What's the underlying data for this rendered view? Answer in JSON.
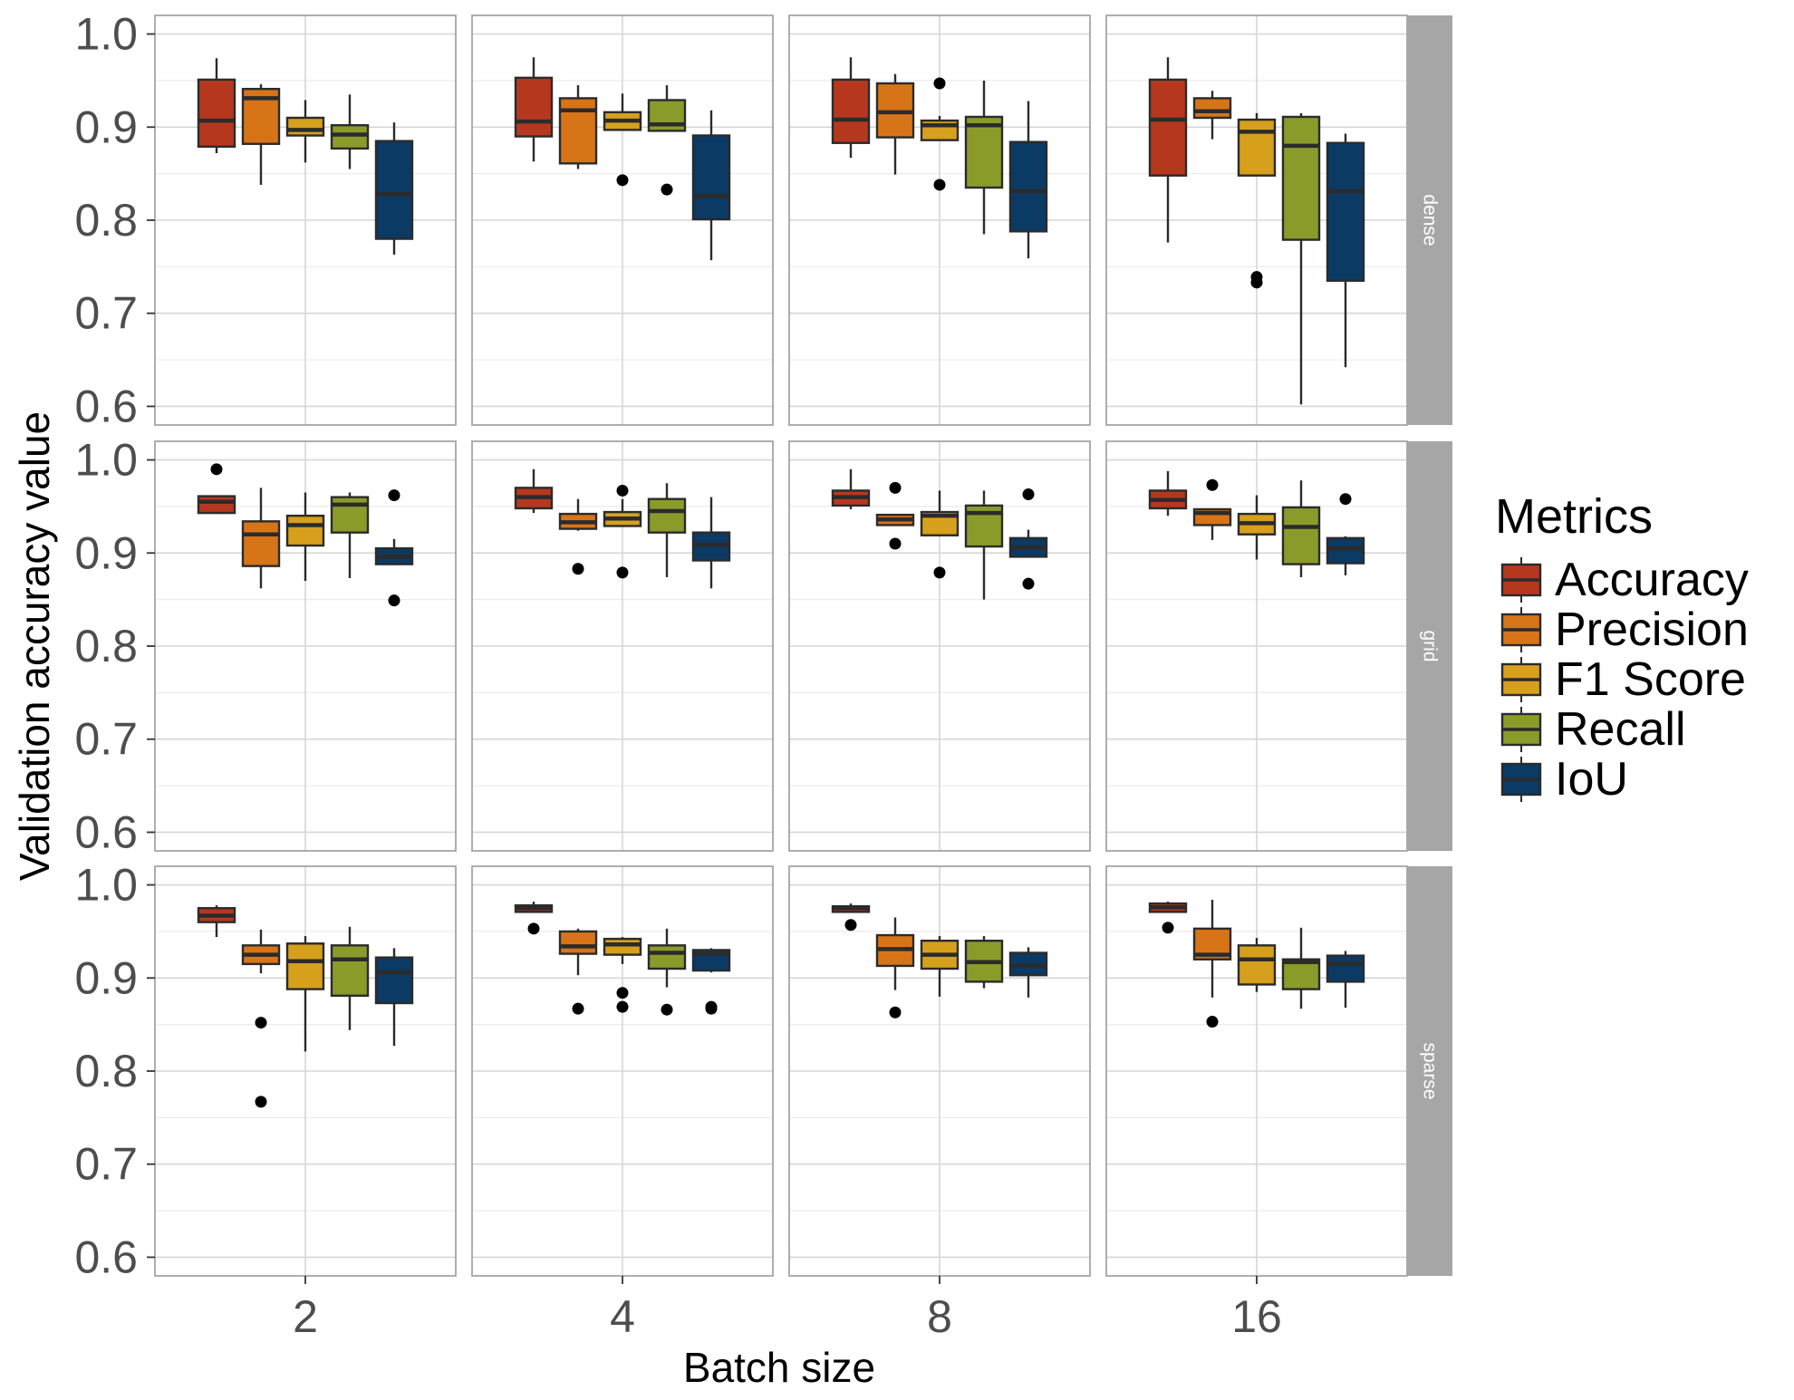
{
  "chart_data": {
    "type": "box",
    "ylabel": "Validation accuracy value",
    "xlabel": "Batch size",
    "batch_sizes": [
      "2",
      "4",
      "8",
      "16"
    ],
    "row_facets": [
      "dense",
      "grid",
      "sparse"
    ],
    "ylim": [
      0.58,
      1.02
    ],
    "y_ticks": [
      "0.6",
      "0.7",
      "0.8",
      "0.9",
      "1.0"
    ],
    "y_tick_values": [
      0.6,
      0.7,
      0.8,
      0.9,
      1.0
    ],
    "grid": true,
    "legend": {
      "title": "Metrics",
      "placement": "right",
      "items": [
        {
          "name": "Accuracy",
          "color": "#b5381e"
        },
        {
          "name": "Precision",
          "color": "#d87418"
        },
        {
          "name": "F1 Score",
          "color": "#d6a01c"
        },
        {
          "name": "Recall",
          "color": "#8b9b2a"
        },
        {
          "name": "IoU",
          "color": "#0b3a64"
        }
      ]
    },
    "panels": [
      {
        "row": "dense",
        "batch": "2",
        "boxes": [
          {
            "metric": "Accuracy",
            "min": 0.872,
            "q1": 0.879,
            "median": 0.907,
            "q3": 0.951,
            "max": 0.974,
            "outliers": []
          },
          {
            "metric": "Precision",
            "min": 0.838,
            "q1": 0.882,
            "median": 0.931,
            "q3": 0.941,
            "max": 0.946,
            "outliers": []
          },
          {
            "metric": "F1 Score",
            "min": 0.862,
            "q1": 0.891,
            "median": 0.897,
            "q3": 0.91,
            "max": 0.929,
            "outliers": []
          },
          {
            "metric": "Recall",
            "min": 0.855,
            "q1": 0.877,
            "median": 0.892,
            "q3": 0.902,
            "max": 0.935,
            "outliers": []
          },
          {
            "metric": "IoU",
            "min": 0.763,
            "q1": 0.78,
            "median": 0.828,
            "q3": 0.885,
            "max": 0.905,
            "outliers": []
          }
        ]
      },
      {
        "row": "dense",
        "batch": "4",
        "boxes": [
          {
            "metric": "Accuracy",
            "min": 0.863,
            "q1": 0.89,
            "median": 0.906,
            "q3": 0.953,
            "max": 0.975,
            "outliers": []
          },
          {
            "metric": "Precision",
            "min": 0.855,
            "q1": 0.861,
            "median": 0.918,
            "q3": 0.931,
            "max": 0.945,
            "outliers": []
          },
          {
            "metric": "F1 Score",
            "min": 0.897,
            "q1": 0.897,
            "median": 0.907,
            "q3": 0.916,
            "max": 0.936,
            "outliers": [
              0.843
            ]
          },
          {
            "metric": "Recall",
            "min": 0.895,
            "q1": 0.896,
            "median": 0.903,
            "q3": 0.929,
            "max": 0.945,
            "outliers": [
              0.833
            ]
          },
          {
            "metric": "IoU",
            "min": 0.757,
            "q1": 0.801,
            "median": 0.826,
            "q3": 0.891,
            "max": 0.918,
            "outliers": []
          }
        ]
      },
      {
        "row": "dense",
        "batch": "8",
        "boxes": [
          {
            "metric": "Accuracy",
            "min": 0.867,
            "q1": 0.883,
            "median": 0.908,
            "q3": 0.951,
            "max": 0.975,
            "outliers": []
          },
          {
            "metric": "Precision",
            "min": 0.849,
            "q1": 0.889,
            "median": 0.916,
            "q3": 0.947,
            "max": 0.957,
            "outliers": []
          },
          {
            "metric": "F1 Score",
            "min": 0.885,
            "q1": 0.886,
            "median": 0.902,
            "q3": 0.907,
            "max": 0.912,
            "outliers": [
              0.947,
              0.838
            ]
          },
          {
            "metric": "Recall",
            "min": 0.785,
            "q1": 0.835,
            "median": 0.902,
            "q3": 0.911,
            "max": 0.95,
            "outliers": []
          },
          {
            "metric": "IoU",
            "min": 0.759,
            "q1": 0.788,
            "median": 0.831,
            "q3": 0.884,
            "max": 0.928,
            "outliers": []
          }
        ]
      },
      {
        "row": "dense",
        "batch": "16",
        "boxes": [
          {
            "metric": "Accuracy",
            "min": 0.776,
            "q1": 0.848,
            "median": 0.908,
            "q3": 0.951,
            "max": 0.975,
            "outliers": []
          },
          {
            "metric": "Precision",
            "min": 0.887,
            "q1": 0.91,
            "median": 0.917,
            "q3": 0.931,
            "max": 0.939,
            "outliers": []
          },
          {
            "metric": "F1 Score",
            "min": 0.848,
            "q1": 0.848,
            "median": 0.895,
            "q3": 0.908,
            "max": 0.915,
            "outliers": [
              0.739,
              0.733
            ]
          },
          {
            "metric": "Recall",
            "min": 0.602,
            "q1": 0.779,
            "median": 0.88,
            "q3": 0.911,
            "max": 0.915,
            "outliers": []
          },
          {
            "metric": "IoU",
            "min": 0.642,
            "q1": 0.735,
            "median": 0.831,
            "q3": 0.883,
            "max": 0.893,
            "outliers": []
          }
        ]
      },
      {
        "row": "grid",
        "batch": "2",
        "boxes": [
          {
            "metric": "Accuracy",
            "min": 0.942,
            "q1": 0.943,
            "median": 0.955,
            "q3": 0.961,
            "max": 0.962,
            "outliers": [
              0.99
            ]
          },
          {
            "metric": "Precision",
            "min": 0.862,
            "q1": 0.886,
            "median": 0.92,
            "q3": 0.934,
            "max": 0.97,
            "outliers": []
          },
          {
            "metric": "F1 Score",
            "min": 0.87,
            "q1": 0.908,
            "median": 0.93,
            "q3": 0.94,
            "max": 0.965,
            "outliers": []
          },
          {
            "metric": "Recall",
            "min": 0.873,
            "q1": 0.922,
            "median": 0.952,
            "q3": 0.96,
            "max": 0.965,
            "outliers": []
          },
          {
            "metric": "IoU",
            "min": 0.887,
            "q1": 0.888,
            "median": 0.896,
            "q3": 0.905,
            "max": 0.915,
            "outliers": [
              0.962,
              0.849
            ]
          }
        ]
      },
      {
        "row": "grid",
        "batch": "4",
        "boxes": [
          {
            "metric": "Accuracy",
            "min": 0.943,
            "q1": 0.948,
            "median": 0.96,
            "q3": 0.97,
            "max": 0.99,
            "outliers": []
          },
          {
            "metric": "Precision",
            "min": 0.924,
            "q1": 0.926,
            "median": 0.933,
            "q3": 0.942,
            "max": 0.958,
            "outliers": [
              0.883
            ]
          },
          {
            "metric": "F1 Score",
            "min": 0.928,
            "q1": 0.929,
            "median": 0.937,
            "q3": 0.944,
            "max": 0.958,
            "outliers": [
              0.967,
              0.879
            ]
          },
          {
            "metric": "Recall",
            "min": 0.874,
            "q1": 0.922,
            "median": 0.945,
            "q3": 0.958,
            "max": 0.975,
            "outliers": []
          },
          {
            "metric": "IoU",
            "min": 0.862,
            "q1": 0.892,
            "median": 0.909,
            "q3": 0.922,
            "max": 0.96,
            "outliers": []
          }
        ]
      },
      {
        "row": "grid",
        "batch": "8",
        "boxes": [
          {
            "metric": "Accuracy",
            "min": 0.947,
            "q1": 0.951,
            "median": 0.96,
            "q3": 0.967,
            "max": 0.99,
            "outliers": []
          },
          {
            "metric": "Precision",
            "min": 0.93,
            "q1": 0.93,
            "median": 0.936,
            "q3": 0.941,
            "max": 0.942,
            "outliers": [
              0.97,
              0.91
            ]
          },
          {
            "metric": "F1 Score",
            "min": 0.918,
            "q1": 0.919,
            "median": 0.94,
            "q3": 0.944,
            "max": 0.967,
            "outliers": [
              0.879
            ]
          },
          {
            "metric": "Recall",
            "min": 0.85,
            "q1": 0.907,
            "median": 0.943,
            "q3": 0.951,
            "max": 0.967,
            "outliers": []
          },
          {
            "metric": "IoU",
            "min": 0.895,
            "q1": 0.896,
            "median": 0.906,
            "q3": 0.916,
            "max": 0.925,
            "outliers": [
              0.963,
              0.867
            ]
          }
        ]
      },
      {
        "row": "grid",
        "batch": "16",
        "boxes": [
          {
            "metric": "Accuracy",
            "min": 0.94,
            "q1": 0.948,
            "median": 0.957,
            "q3": 0.967,
            "max": 0.988,
            "outliers": []
          },
          {
            "metric": "Precision",
            "min": 0.914,
            "q1": 0.93,
            "median": 0.943,
            "q3": 0.947,
            "max": 0.947,
            "outliers": [
              0.973
            ]
          },
          {
            "metric": "F1 Score",
            "min": 0.893,
            "q1": 0.92,
            "median": 0.932,
            "q3": 0.942,
            "max": 0.962,
            "outliers": []
          },
          {
            "metric": "Recall",
            "min": 0.874,
            "q1": 0.888,
            "median": 0.928,
            "q3": 0.949,
            "max": 0.978,
            "outliers": []
          },
          {
            "metric": "IoU",
            "min": 0.876,
            "q1": 0.889,
            "median": 0.905,
            "q3": 0.916,
            "max": 0.918,
            "outliers": [
              0.958
            ]
          }
        ]
      },
      {
        "row": "sparse",
        "batch": "2",
        "boxes": [
          {
            "metric": "Accuracy",
            "min": 0.944,
            "q1": 0.96,
            "median": 0.967,
            "q3": 0.975,
            "max": 0.978,
            "outliers": []
          },
          {
            "metric": "Precision",
            "min": 0.905,
            "q1": 0.915,
            "median": 0.925,
            "q3": 0.935,
            "max": 0.952,
            "outliers": [
              0.852,
              0.767
            ]
          },
          {
            "metric": "F1 Score",
            "min": 0.821,
            "q1": 0.888,
            "median": 0.918,
            "q3": 0.937,
            "max": 0.945,
            "outliers": []
          },
          {
            "metric": "Recall",
            "min": 0.844,
            "q1": 0.881,
            "median": 0.92,
            "q3": 0.935,
            "max": 0.955,
            "outliers": []
          },
          {
            "metric": "IoU",
            "min": 0.827,
            "q1": 0.873,
            "median": 0.906,
            "q3": 0.922,
            "max": 0.932,
            "outliers": []
          }
        ]
      },
      {
        "row": "sparse",
        "batch": "4",
        "boxes": [
          {
            "metric": "Accuracy",
            "min": 0.97,
            "q1": 0.971,
            "median": 0.975,
            "q3": 0.978,
            "max": 0.982,
            "outliers": [
              0.953
            ]
          },
          {
            "metric": "Precision",
            "min": 0.903,
            "q1": 0.926,
            "median": 0.934,
            "q3": 0.95,
            "max": 0.953,
            "outliers": [
              0.867
            ]
          },
          {
            "metric": "F1 Score",
            "min": 0.915,
            "q1": 0.925,
            "median": 0.936,
            "q3": 0.942,
            "max": 0.944,
            "outliers": [
              0.884,
              0.869
            ]
          },
          {
            "metric": "Recall",
            "min": 0.89,
            "q1": 0.91,
            "median": 0.927,
            "q3": 0.935,
            "max": 0.953,
            "outliers": [
              0.866
            ]
          },
          {
            "metric": "IoU",
            "min": 0.906,
            "q1": 0.908,
            "median": 0.926,
            "q3": 0.93,
            "max": 0.932,
            "outliers": [
              0.869,
              0.867
            ]
          }
        ]
      },
      {
        "row": "sparse",
        "batch": "8",
        "boxes": [
          {
            "metric": "Accuracy",
            "min": 0.97,
            "q1": 0.971,
            "median": 0.975,
            "q3": 0.977,
            "max": 0.98,
            "outliers": [
              0.957
            ]
          },
          {
            "metric": "Precision",
            "min": 0.887,
            "q1": 0.913,
            "median": 0.931,
            "q3": 0.946,
            "max": 0.965,
            "outliers": [
              0.863
            ]
          },
          {
            "metric": "F1 Score",
            "min": 0.88,
            "q1": 0.91,
            "median": 0.925,
            "q3": 0.94,
            "max": 0.945,
            "outliers": []
          },
          {
            "metric": "Recall",
            "min": 0.889,
            "q1": 0.896,
            "median": 0.917,
            "q3": 0.94,
            "max": 0.945,
            "outliers": []
          },
          {
            "metric": "IoU",
            "min": 0.879,
            "q1": 0.903,
            "median": 0.913,
            "q3": 0.927,
            "max": 0.933,
            "outliers": []
          }
        ]
      },
      {
        "row": "sparse",
        "batch": "16",
        "boxes": [
          {
            "metric": "Accuracy",
            "min": 0.971,
            "q1": 0.971,
            "median": 0.976,
            "q3": 0.98,
            "max": 0.982,
            "outliers": [
              0.954
            ]
          },
          {
            "metric": "Precision",
            "min": 0.879,
            "q1": 0.92,
            "median": 0.925,
            "q3": 0.953,
            "max": 0.984,
            "outliers": [
              0.853
            ]
          },
          {
            "metric": "F1 Score",
            "min": 0.885,
            "q1": 0.893,
            "median": 0.92,
            "q3": 0.935,
            "max": 0.943,
            "outliers": []
          },
          {
            "metric": "Recall",
            "min": 0.867,
            "q1": 0.888,
            "median": 0.917,
            "q3": 0.92,
            "max": 0.954,
            "outliers": []
          },
          {
            "metric": "IoU",
            "min": 0.868,
            "q1": 0.896,
            "median": 0.915,
            "q3": 0.924,
            "max": 0.929,
            "outliers": []
          }
        ]
      }
    ]
  }
}
